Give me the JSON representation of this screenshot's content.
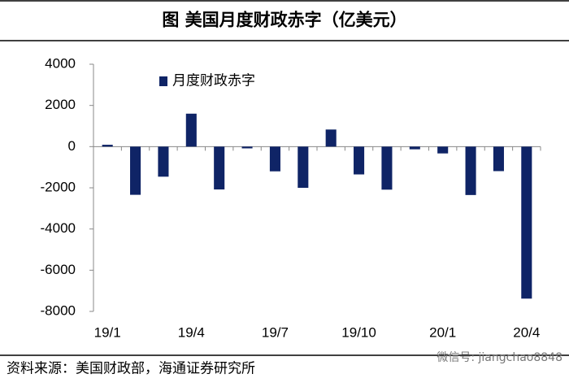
{
  "chart_data": {
    "type": "bar",
    "title": "图  美国月度财政赤字（亿美元）",
    "source": "资料来源：美国财政部，海通证券研究所",
    "watermark": "微信号: jiangchao8848",
    "categories": [
      "19/1",
      null,
      null,
      "19/4",
      null,
      null,
      "19/7",
      null,
      null,
      "19/10",
      null,
      null,
      "20/1",
      null,
      null,
      "20/4"
    ],
    "series": [
      {
        "name": "月度财政赤字",
        "color": "#0f2466",
        "values": [
          90,
          -2340,
          -1460,
          1600,
          -2080,
          -85,
          -1200,
          -2000,
          830,
          -1350,
          -2090,
          -130,
          -330,
          -2350,
          -1190,
          -7380
        ]
      }
    ],
    "ylim": [
      -8000,
      4000
    ],
    "yticks": [
      -8000,
      -6000,
      -4000,
      -2000,
      0,
      2000,
      4000
    ],
    "grid": false,
    "legend": "top-left"
  }
}
